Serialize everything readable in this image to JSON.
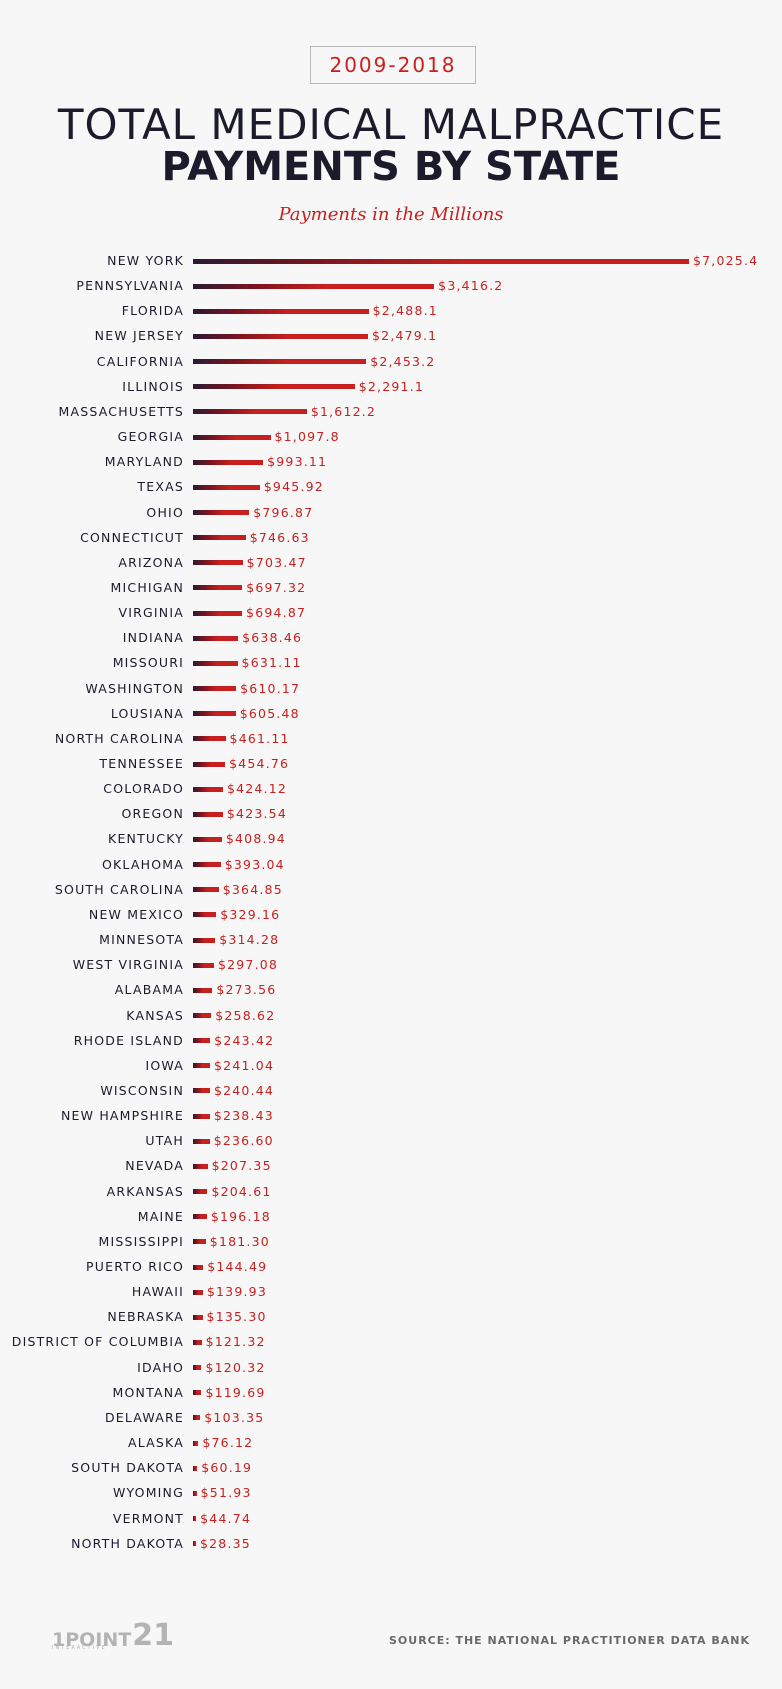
{
  "header": {
    "years": "2009-2018",
    "title_line1": "TOTAL MEDICAL MALPRACTICE",
    "title_line2": "PAYMENTS BY STATE",
    "subtitle": "Payments in the Millions"
  },
  "chart_data": {
    "type": "bar",
    "orientation": "horizontal",
    "title": "TOTAL MEDICAL MALPRACTICE PAYMENTS BY STATE",
    "subtitle": "Payments in the Millions",
    "unit": "USD millions",
    "xlim": [
      0,
      7025.4
    ],
    "categories": [
      "NEW YORK",
      "PENNSYLVANIA",
      "FLORIDA",
      "NEW JERSEY",
      "CALIFORNIA",
      "ILLINOIS",
      "MASSACHUSETTS",
      "GEORGIA",
      "MARYLAND",
      "TEXAS",
      "OHIO",
      "CONNECTICUT",
      "ARIZONA",
      "MICHIGAN",
      "VIRGINIA",
      "INDIANA",
      "MISSOURI",
      "WASHINGTON",
      "LOUSIANA",
      "NORTH CAROLINA",
      "TENNESSEE",
      "COLORADO",
      "OREGON",
      "KENTUCKY",
      "OKLAHOMA",
      "SOUTH CAROLINA",
      "NEW MEXICO",
      "MINNESOTA",
      "WEST VIRGINIA",
      "ALABAMA",
      "KANSAS",
      "RHODE ISLAND",
      "IOWA",
      "WISCONSIN",
      "NEW HAMPSHIRE",
      "UTAH",
      "NEVADA",
      "ARKANSAS",
      "MAINE",
      "MISSISSIPPI",
      "PUERTO RICO",
      "HAWAII",
      "NEBRASKA",
      "DISTRICT OF COLUMBIA",
      "IDAHO",
      "MONTANA",
      "DELAWARE",
      "ALASKA",
      "SOUTH DAKOTA",
      "WYOMING",
      "VERMONT",
      "NORTH DAKOTA"
    ],
    "values": [
      7025.4,
      3416.2,
      2488.1,
      2479.1,
      2453.2,
      2291.1,
      1612.2,
      1097.8,
      993.11,
      945.92,
      796.87,
      746.63,
      703.47,
      697.32,
      694.87,
      638.46,
      631.11,
      610.17,
      605.48,
      461.11,
      454.76,
      424.12,
      423.54,
      408.94,
      393.04,
      364.85,
      329.16,
      314.28,
      297.08,
      273.56,
      258.62,
      243.42,
      241.04,
      240.44,
      238.43,
      236.6,
      207.35,
      204.61,
      196.18,
      181.3,
      144.49,
      139.93,
      135.3,
      121.32,
      120.32,
      119.69,
      103.35,
      76.12,
      60.19,
      51.93,
      44.74,
      28.35
    ],
    "value_labels": [
      "$7,025.4",
      "$3,416.2",
      "$2,488.1",
      "$2,479.1",
      "$2,453.2",
      "$2,291.1",
      "$1,612.2",
      "$1,097.8",
      "$993.11",
      "$945.92",
      "$796.87",
      "$746.63",
      "$703.47",
      "$697.32",
      "$694.87",
      "$638.46",
      "$631.11",
      "$610.17",
      "$605.48",
      "$461.11",
      "$454.76",
      "$424.12",
      "$423.54",
      "$408.94",
      "$393.04",
      "$364.85",
      "$329.16",
      "$314.28",
      "$297.08",
      "$273.56",
      "$258.62",
      "$243.42",
      "$241.04",
      "$240.44",
      "$238.43",
      "$236.60",
      "$207.35",
      "$204.61",
      "$196.18",
      "$181.30",
      "$144.49",
      "$139.93",
      "$135.30",
      "$121.32",
      "$120.32",
      "$119.69",
      "$103.35",
      "$76.12",
      "$60.19",
      "$51.93",
      "$44.74",
      "$28.35"
    ],
    "colors": {
      "bar": "#c8201e",
      "bar_start": "#2a1a33",
      "label": "#1b1b2b"
    }
  },
  "footer": {
    "logo_text": "1POINT",
    "logo_number": "21",
    "logo_sub": "INTERACTIVE",
    "source": "SOURCE: THE NATIONAL PRACTITIONER DATA BANK"
  }
}
